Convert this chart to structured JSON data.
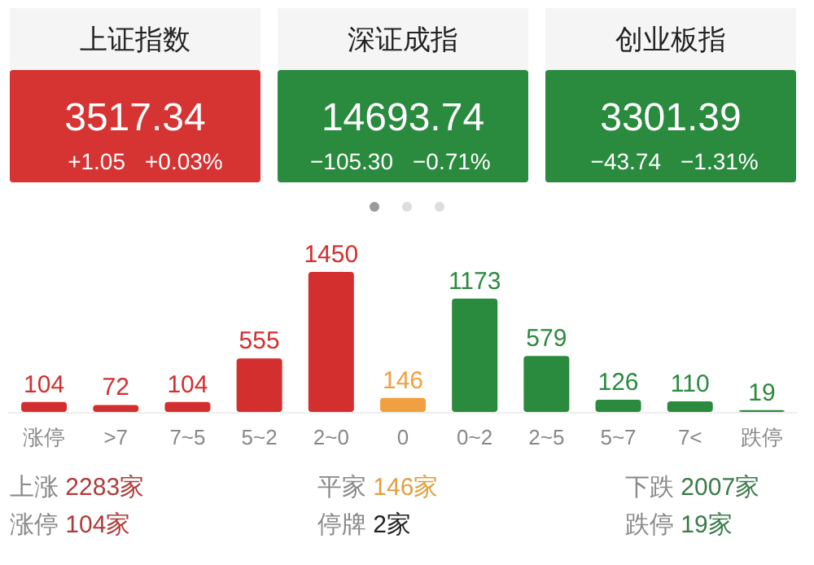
{
  "chart_data": [
    {
      "type": "other",
      "title": "上证指数",
      "values": [
        3517.34
      ],
      "data_labels": true,
      "color": "#d63333",
      "annotations": [
        "+1.05",
        "+0.03%"
      ]
    },
    {
      "type": "other",
      "title": "深证成指",
      "values": [
        14693.74
      ],
      "data_labels": true,
      "color": "#2a8a3e",
      "annotations": [
        "−105.30",
        "−0.71%"
      ]
    },
    {
      "type": "other",
      "title": "创业板指",
      "values": [
        3301.39
      ],
      "data_labels": true,
      "color": "#2a8a3e",
      "annotations": [
        "−43.74",
        "−1.31%"
      ]
    },
    {
      "type": "bar",
      "categories": [
        "涨停",
        ">7",
        "7~5",
        "5~2",
        "2~0",
        "0",
        "0~2",
        "2~5",
        "5~7",
        "7<",
        "跌停"
      ],
      "values": [
        104,
        72,
        104,
        555,
        1450,
        146,
        1173,
        579,
        126,
        110,
        19
      ],
      "data_labels": true,
      "colors": [
        "#d32f2f",
        "#d32f2f",
        "#d32f2f",
        "#d32f2f",
        "#d32f2f",
        "#f0a040",
        "#2a8a3e",
        "#2a8a3e",
        "#2a8a3e",
        "#2a8a3e",
        "#2a8a3e"
      ]
    },
    {
      "type": "other",
      "categories": [
        "上涨",
        "平家",
        "下跌",
        "涨停",
        "停牌",
        "跌停"
      ],
      "annotations": [
        "2283家",
        "146家",
        "2007家",
        "104家",
        "2家",
        "19家"
      ],
      "colors": [
        "#b03a3a",
        "#e0a040",
        "#3a7a4a",
        "#b03a3a",
        "#222222",
        "#3a7a4a"
      ]
    }
  ]
}
